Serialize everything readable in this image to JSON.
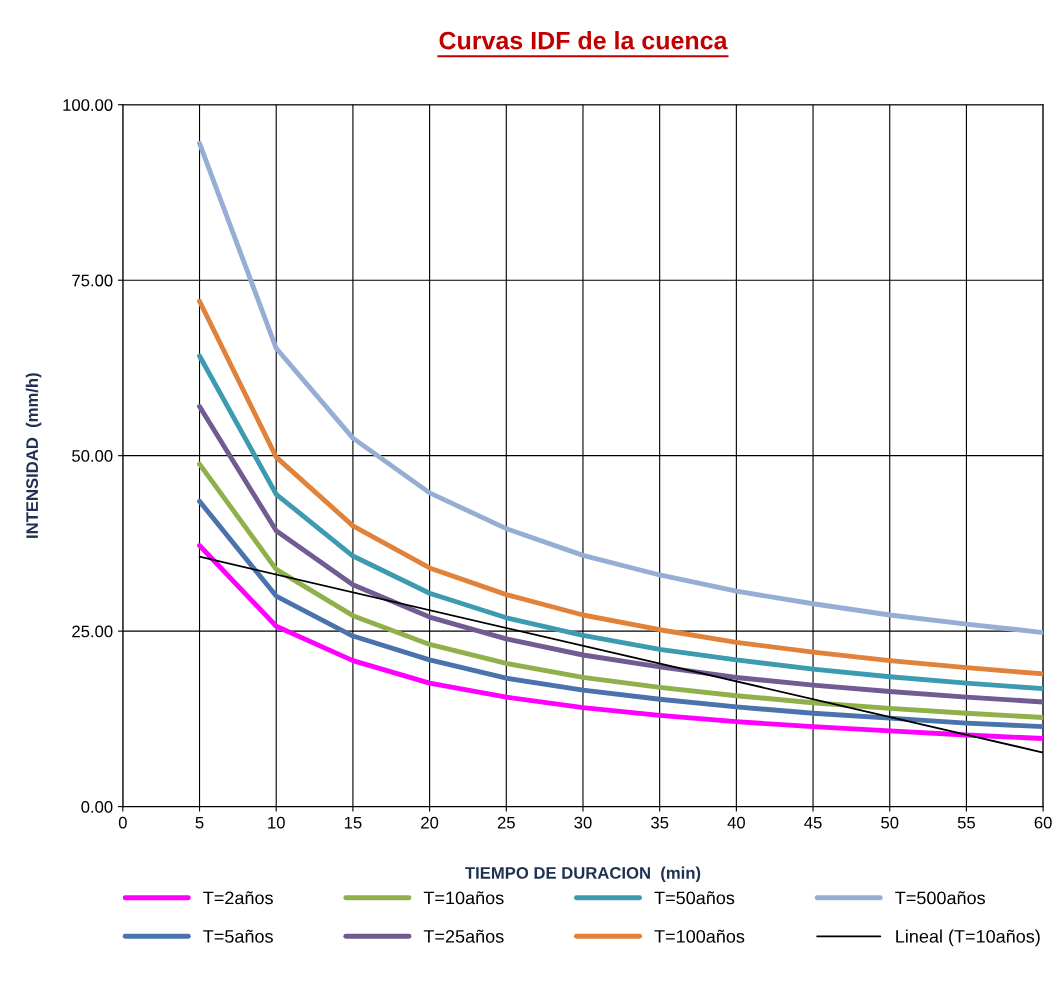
{
  "chart_data": {
    "type": "line",
    "title": "Curvas IDF de la cuenca",
    "xlabel": "TIEMPO DE DURACION  (min)",
    "ylabel": "INTENSIDAD  (mm/h)",
    "x": [
      5,
      10,
      15,
      20,
      25,
      30,
      35,
      40,
      45,
      50,
      55,
      60
    ],
    "series": [
      {
        "name": "T=2años",
        "color": "#ff00ff",
        "values": [
          37.2,
          25.7,
          20.8,
          17.6,
          15.6,
          14.1,
          13.0,
          12.1,
          11.4,
          10.8,
          10.2,
          9.7
        ]
      },
      {
        "name": "T=5años",
        "color": "#4a72ad",
        "values": [
          43.5,
          30.0,
          24.3,
          20.9,
          18.3,
          16.6,
          15.3,
          14.2,
          13.3,
          12.6,
          11.9,
          11.4
        ]
      },
      {
        "name": "T=10años",
        "color": "#8fb04a",
        "values": [
          48.8,
          33.8,
          27.2,
          23.1,
          20.4,
          18.4,
          17.0,
          15.8,
          14.8,
          14.0,
          13.3,
          12.7
        ]
      },
      {
        "name": "T=25años",
        "color": "#725a92",
        "values": [
          57.0,
          39.3,
          31.6,
          27.0,
          23.9,
          21.6,
          19.9,
          18.4,
          17.3,
          16.4,
          15.6,
          14.9
        ]
      },
      {
        "name": "T=50años",
        "color": "#3c9bb0",
        "values": [
          64.2,
          44.5,
          35.7,
          30.4,
          26.9,
          24.4,
          22.4,
          20.9,
          19.6,
          18.5,
          17.6,
          16.8
        ]
      },
      {
        "name": "T=100años",
        "color": "#e0823a",
        "values": [
          72.0,
          49.8,
          40.0,
          34.0,
          30.2,
          27.3,
          25.2,
          23.4,
          22.0,
          20.8,
          19.8,
          18.9
        ]
      },
      {
        "name": "T=500años",
        "color": "#96aed3",
        "values": [
          94.5,
          65.3,
          52.5,
          44.7,
          39.6,
          35.8,
          33.0,
          30.7,
          28.9,
          27.3,
          26.0,
          24.8
        ]
      },
      {
        "name": "Lineal (T=10años)",
        "color": "#000000",
        "x": [
          5,
          60
        ],
        "values": [
          35.6,
          7.7
        ]
      }
    ],
    "xlim": [
      0,
      60
    ],
    "xticks": [
      0,
      5,
      10,
      15,
      20,
      25,
      30,
      35,
      40,
      45,
      50,
      55,
      60
    ],
    "ylim": [
      0,
      100
    ],
    "yticks": [
      {
        "value": 0,
        "label": "0.00"
      },
      {
        "value": 25,
        "label": "25.00"
      },
      {
        "value": 50,
        "label": "50.00"
      },
      {
        "value": 75,
        "label": "75.00"
      },
      {
        "value": 100,
        "label": "100.00"
      }
    ],
    "grid": true,
    "legend": "bottom",
    "marker": "none",
    "line_style": "solid"
  }
}
